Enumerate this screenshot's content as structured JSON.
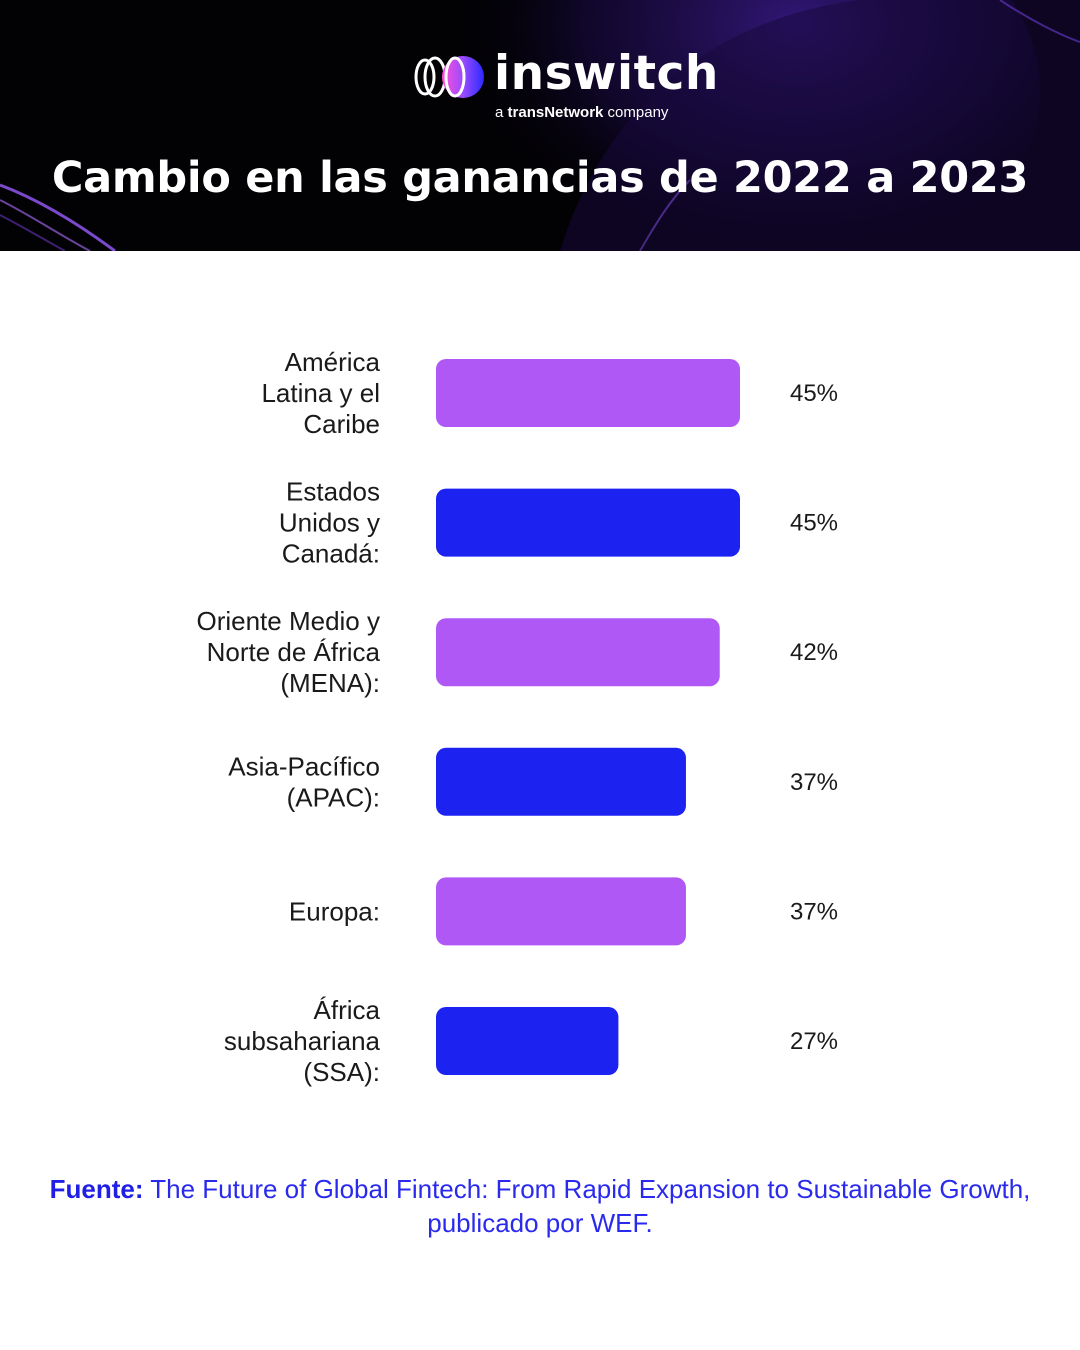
{
  "brand": {
    "name": "inswitch",
    "tagline_prefix": "a ",
    "tagline_brand": "transNetwork",
    "tagline_suffix": " company"
  },
  "colors": {
    "header_bg": "#020104",
    "purple": "#b058f5",
    "blue": "#1c22f0",
    "source_text": "#2a2aee"
  },
  "chart_data": {
    "type": "bar",
    "orientation": "horizontal",
    "title": "Cambio en las ganancias de 2022 a 2023",
    "categories": [
      [
        "América",
        "Latina y el",
        "Caribe"
      ],
      [
        "Estados",
        "Unidos y",
        "Canadá:"
      ],
      [
        "Oriente Medio y",
        "Norte de África",
        "(MENA):"
      ],
      [
        "Asia-Pacífico",
        "(APAC):"
      ],
      [
        "Europa:"
      ],
      [
        "África",
        "subsahariana",
        "(SSA):"
      ]
    ],
    "values": [
      45,
      45,
      42,
      37,
      37,
      27
    ],
    "value_labels": [
      "45%",
      "45%",
      "42%",
      "37%",
      "37%",
      "27%"
    ],
    "bar_colors": [
      "#b058f5",
      "#1c22f0",
      "#b058f5",
      "#1c22f0",
      "#b058f5",
      "#1c22f0"
    ],
    "xlim": [
      0,
      45
    ],
    "grid": false,
    "legend": "none"
  },
  "source": {
    "label": "Fuente:",
    "text": " The Future of Global Fintech: From Rapid Expansion to Sustainable Growth, publicado por WEF."
  }
}
